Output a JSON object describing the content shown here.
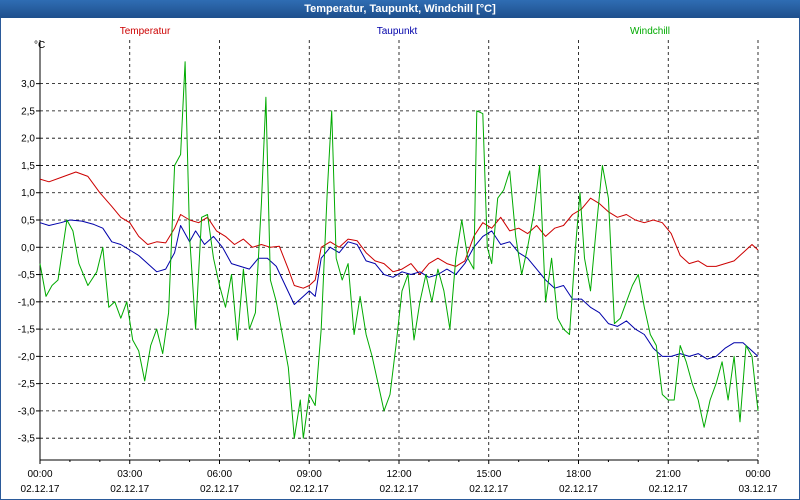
{
  "window": {
    "title": "Temperatur, Taupunkt, Windchill [°C]"
  },
  "chart_data": {
    "type": "line",
    "title": "Temperatur, Taupunkt, Windchill [°C]",
    "ylabel": "°C",
    "xlabel": "",
    "ylim": [
      -3.9,
      3.8
    ],
    "grid": true,
    "legend": "top",
    "y_ticks": [
      "3,0",
      "2,5",
      "2,0",
      "1,5",
      "1,0",
      "0,5",
      "0,0",
      "-0,5",
      "-1,0",
      "-1,5",
      "-2,0",
      "-2,5",
      "-3,0",
      "-3,5"
    ],
    "x_ticks": [
      {
        "time": "00:00",
        "date": "02.12.17"
      },
      {
        "time": "03:00",
        "date": "02.12.17"
      },
      {
        "time": "06:00",
        "date": "02.12.17"
      },
      {
        "time": "09:00",
        "date": "02.12.17"
      },
      {
        "time": "12:00",
        "date": "02.12.17"
      },
      {
        "time": "15:00",
        "date": "02.12.17"
      },
      {
        "time": "18:00",
        "date": "02.12.17"
      },
      {
        "time": "21:00",
        "date": "02.12.17"
      },
      {
        "time": "00:00",
        "date": "03.12.17"
      }
    ],
    "series": [
      {
        "name": "Temperatur",
        "color": "#cc0000",
        "points": [
          [
            0,
            1.25
          ],
          [
            0.3,
            1.2
          ],
          [
            0.7,
            1.28
          ],
          [
            1.2,
            1.38
          ],
          [
            1.6,
            1.3
          ],
          [
            2.0,
            1.0
          ],
          [
            2.4,
            0.75
          ],
          [
            2.7,
            0.55
          ],
          [
            3.0,
            0.45
          ],
          [
            3.3,
            0.2
          ],
          [
            3.6,
            0.05
          ],
          [
            3.9,
            0.1
          ],
          [
            4.2,
            0.08
          ],
          [
            4.5,
            0.35
          ],
          [
            4.7,
            0.6
          ],
          [
            5.0,
            0.5
          ],
          [
            5.3,
            0.45
          ],
          [
            5.6,
            0.55
          ],
          [
            5.9,
            0.3
          ],
          [
            6.2,
            0.2
          ],
          [
            6.5,
            0.05
          ],
          [
            6.8,
            0.15
          ],
          [
            7.1,
            0.0
          ],
          [
            7.4,
            0.05
          ],
          [
            7.7,
            0.0
          ],
          [
            8.0,
            0.02
          ],
          [
            8.3,
            -0.4
          ],
          [
            8.5,
            -0.7
          ],
          [
            8.8,
            -0.75
          ],
          [
            9.0,
            -0.7
          ],
          [
            9.2,
            -0.6
          ],
          [
            9.4,
            0.0
          ],
          [
            9.7,
            0.1
          ],
          [
            10.0,
            0.0
          ],
          [
            10.3,
            0.15
          ],
          [
            10.6,
            0.12
          ],
          [
            10.9,
            -0.1
          ],
          [
            11.2,
            -0.25
          ],
          [
            11.5,
            -0.3
          ],
          [
            11.8,
            -0.45
          ],
          [
            12.1,
            -0.4
          ],
          [
            12.4,
            -0.3
          ],
          [
            12.7,
            -0.5
          ],
          [
            13.0,
            -0.3
          ],
          [
            13.3,
            -0.2
          ],
          [
            13.6,
            -0.3
          ],
          [
            13.9,
            -0.35
          ],
          [
            14.2,
            -0.25
          ],
          [
            14.5,
            0.2
          ],
          [
            14.8,
            0.45
          ],
          [
            15.1,
            0.35
          ],
          [
            15.4,
            0.55
          ],
          [
            15.7,
            0.3
          ],
          [
            16.0,
            0.35
          ],
          [
            16.3,
            0.25
          ],
          [
            16.6,
            0.4
          ],
          [
            16.9,
            0.2
          ],
          [
            17.2,
            0.35
          ],
          [
            17.5,
            0.4
          ],
          [
            17.8,
            0.6
          ],
          [
            18.1,
            0.7
          ],
          [
            18.4,
            0.9
          ],
          [
            18.7,
            0.8
          ],
          [
            19.0,
            0.65
          ],
          [
            19.3,
            0.55
          ],
          [
            19.6,
            0.6
          ],
          [
            19.9,
            0.5
          ],
          [
            20.2,
            0.45
          ],
          [
            20.5,
            0.5
          ],
          [
            20.8,
            0.45
          ],
          [
            21.1,
            0.25
          ],
          [
            21.4,
            -0.15
          ],
          [
            21.7,
            -0.3
          ],
          [
            22.0,
            -0.25
          ],
          [
            22.3,
            -0.35
          ],
          [
            22.6,
            -0.35
          ],
          [
            22.9,
            -0.3
          ],
          [
            23.2,
            -0.25
          ],
          [
            23.5,
            -0.1
          ],
          [
            23.8,
            0.05
          ],
          [
            24.0,
            -0.05
          ]
        ]
      },
      {
        "name": "Taupunkt",
        "color": "#0000aa",
        "points": [
          [
            0,
            0.45
          ],
          [
            0.3,
            0.4
          ],
          [
            0.7,
            0.45
          ],
          [
            1.0,
            0.5
          ],
          [
            1.4,
            0.48
          ],
          [
            1.8,
            0.42
          ],
          [
            2.1,
            0.35
          ],
          [
            2.4,
            0.1
          ],
          [
            2.7,
            0.05
          ],
          [
            3.0,
            -0.05
          ],
          [
            3.3,
            -0.15
          ],
          [
            3.6,
            -0.3
          ],
          [
            3.9,
            -0.45
          ],
          [
            4.2,
            -0.4
          ],
          [
            4.5,
            -0.1
          ],
          [
            4.7,
            0.4
          ],
          [
            5.0,
            0.1
          ],
          [
            5.2,
            0.3
          ],
          [
            5.5,
            0.05
          ],
          [
            5.8,
            0.2
          ],
          [
            6.1,
            0.0
          ],
          [
            6.4,
            -0.3
          ],
          [
            6.7,
            -0.35
          ],
          [
            7.0,
            -0.4
          ],
          [
            7.3,
            -0.2
          ],
          [
            7.6,
            -0.2
          ],
          [
            7.9,
            -0.35
          ],
          [
            8.2,
            -0.7
          ],
          [
            8.5,
            -1.05
          ],
          [
            8.8,
            -0.9
          ],
          [
            9.0,
            -0.8
          ],
          [
            9.2,
            -0.9
          ],
          [
            9.4,
            -0.2
          ],
          [
            9.7,
            0.0
          ],
          [
            10.0,
            -0.1
          ],
          [
            10.3,
            0.1
          ],
          [
            10.6,
            0.05
          ],
          [
            10.9,
            -0.25
          ],
          [
            11.2,
            -0.3
          ],
          [
            11.5,
            -0.5
          ],
          [
            11.8,
            -0.55
          ],
          [
            12.1,
            -0.45
          ],
          [
            12.4,
            -0.5
          ],
          [
            12.7,
            -0.45
          ],
          [
            13.0,
            -0.55
          ],
          [
            13.3,
            -0.5
          ],
          [
            13.6,
            -0.4
          ],
          [
            13.9,
            -0.5
          ],
          [
            14.2,
            -0.3
          ],
          [
            14.5,
            0.0
          ],
          [
            14.8,
            0.2
          ],
          [
            15.1,
            0.3
          ],
          [
            15.4,
            0.05
          ],
          [
            15.7,
            0.1
          ],
          [
            16.0,
            -0.1
          ],
          [
            16.3,
            -0.2
          ],
          [
            16.6,
            -0.4
          ],
          [
            16.9,
            -0.6
          ],
          [
            17.2,
            -0.75
          ],
          [
            17.5,
            -0.7
          ],
          [
            17.8,
            -0.95
          ],
          [
            18.1,
            -0.95
          ],
          [
            18.4,
            -1.1
          ],
          [
            18.7,
            -1.2
          ],
          [
            19.0,
            -1.4
          ],
          [
            19.3,
            -1.45
          ],
          [
            19.6,
            -1.35
          ],
          [
            19.9,
            -1.5
          ],
          [
            20.2,
            -1.6
          ],
          [
            20.5,
            -1.85
          ],
          [
            20.8,
            -2.0
          ],
          [
            21.1,
            -2.0
          ],
          [
            21.4,
            -1.95
          ],
          [
            21.7,
            -2.0
          ],
          [
            22.0,
            -1.95
          ],
          [
            22.3,
            -2.05
          ],
          [
            22.6,
            -2.0
          ],
          [
            22.9,
            -1.85
          ],
          [
            23.2,
            -1.75
          ],
          [
            23.5,
            -1.75
          ],
          [
            23.8,
            -1.9
          ],
          [
            24.0,
            -2.0
          ]
        ]
      },
      {
        "name": "Windchill",
        "color": "#00aa00",
        "points": [
          [
            0,
            -0.3
          ],
          [
            0.2,
            -0.9
          ],
          [
            0.4,
            -0.7
          ],
          [
            0.6,
            -0.6
          ],
          [
            0.9,
            0.5
          ],
          [
            1.1,
            0.3
          ],
          [
            1.3,
            -0.3
          ],
          [
            1.6,
            -0.7
          ],
          [
            1.9,
            -0.45
          ],
          [
            2.1,
            0.0
          ],
          [
            2.3,
            -1.1
          ],
          [
            2.5,
            -1.0
          ],
          [
            2.7,
            -1.3
          ],
          [
            2.9,
            -1.0
          ],
          [
            3.1,
            -1.7
          ],
          [
            3.3,
            -1.9
          ],
          [
            3.5,
            -2.45
          ],
          [
            3.7,
            -1.8
          ],
          [
            3.9,
            -1.5
          ],
          [
            4.1,
            -1.95
          ],
          [
            4.3,
            -1.2
          ],
          [
            4.5,
            1.5
          ],
          [
            4.7,
            1.7
          ],
          [
            4.85,
            3.4
          ],
          [
            5.0,
            0.2
          ],
          [
            5.2,
            -1.5
          ],
          [
            5.4,
            0.55
          ],
          [
            5.6,
            0.6
          ],
          [
            5.8,
            -0.2
          ],
          [
            6.0,
            -0.7
          ],
          [
            6.2,
            -1.1
          ],
          [
            6.4,
            -0.5
          ],
          [
            6.6,
            -1.7
          ],
          [
            6.8,
            -0.4
          ],
          [
            7.0,
            -1.5
          ],
          [
            7.2,
            -1.2
          ],
          [
            7.4,
            0.8
          ],
          [
            7.55,
            2.75
          ],
          [
            7.7,
            -0.6
          ],
          [
            7.9,
            -1.0
          ],
          [
            8.1,
            -1.6
          ],
          [
            8.3,
            -2.2
          ],
          [
            8.5,
            -3.5
          ],
          [
            8.7,
            -2.8
          ],
          [
            8.8,
            -3.5
          ],
          [
            9.0,
            -2.7
          ],
          [
            9.2,
            -2.9
          ],
          [
            9.4,
            -1.5
          ],
          [
            9.6,
            1.0
          ],
          [
            9.75,
            2.5
          ],
          [
            9.9,
            -0.2
          ],
          [
            10.1,
            -0.6
          ],
          [
            10.3,
            -0.3
          ],
          [
            10.5,
            -1.6
          ],
          [
            10.7,
            -0.9
          ],
          [
            10.9,
            -1.6
          ],
          [
            11.1,
            -2.0
          ],
          [
            11.3,
            -2.5
          ],
          [
            11.5,
            -3.0
          ],
          [
            11.7,
            -2.7
          ],
          [
            11.9,
            -1.8
          ],
          [
            12.1,
            -0.8
          ],
          [
            12.3,
            -0.5
          ],
          [
            12.5,
            -1.7
          ],
          [
            12.7,
            -1.0
          ],
          [
            12.9,
            -0.5
          ],
          [
            13.1,
            -1.0
          ],
          [
            13.3,
            -0.4
          ],
          [
            13.5,
            -0.8
          ],
          [
            13.7,
            -1.5
          ],
          [
            13.9,
            -0.2
          ],
          [
            14.1,
            0.5
          ],
          [
            14.3,
            -0.2
          ],
          [
            14.5,
            -0.4
          ],
          [
            14.6,
            2.5
          ],
          [
            14.8,
            2.45
          ],
          [
            14.95,
            0.0
          ],
          [
            15.1,
            -0.3
          ],
          [
            15.3,
            0.9
          ],
          [
            15.5,
            1.05
          ],
          [
            15.7,
            1.4
          ],
          [
            15.9,
            0.2
          ],
          [
            16.1,
            -0.5
          ],
          [
            16.3,
            0.0
          ],
          [
            16.5,
            0.6
          ],
          [
            16.7,
            1.5
          ],
          [
            16.9,
            -1.0
          ],
          [
            17.1,
            -0.2
          ],
          [
            17.3,
            -1.3
          ],
          [
            17.5,
            -1.5
          ],
          [
            17.7,
            -1.6
          ],
          [
            17.9,
            0.0
          ],
          [
            18.05,
            1.0
          ],
          [
            18.2,
            -0.2
          ],
          [
            18.4,
            -0.8
          ],
          [
            18.6,
            0.4
          ],
          [
            18.8,
            1.5
          ],
          [
            19.0,
            0.9
          ],
          [
            19.2,
            -1.4
          ],
          [
            19.4,
            -1.3
          ],
          [
            19.6,
            -1.0
          ],
          [
            19.8,
            -0.7
          ],
          [
            20.0,
            -0.5
          ],
          [
            20.2,
            -1.1
          ],
          [
            20.4,
            -1.6
          ],
          [
            20.6,
            -1.8
          ],
          [
            20.8,
            -2.7
          ],
          [
            21.0,
            -2.8
          ],
          [
            21.2,
            -2.8
          ],
          [
            21.4,
            -1.8
          ],
          [
            21.6,
            -2.1
          ],
          [
            21.8,
            -2.5
          ],
          [
            22.0,
            -2.8
          ],
          [
            22.2,
            -3.3
          ],
          [
            22.4,
            -2.8
          ],
          [
            22.6,
            -2.5
          ],
          [
            22.8,
            -2.1
          ],
          [
            23.0,
            -2.8
          ],
          [
            23.2,
            -2.0
          ],
          [
            23.4,
            -3.2
          ],
          [
            23.6,
            -1.8
          ],
          [
            23.8,
            -2.0
          ],
          [
            24.0,
            -3.0
          ]
        ]
      }
    ]
  }
}
